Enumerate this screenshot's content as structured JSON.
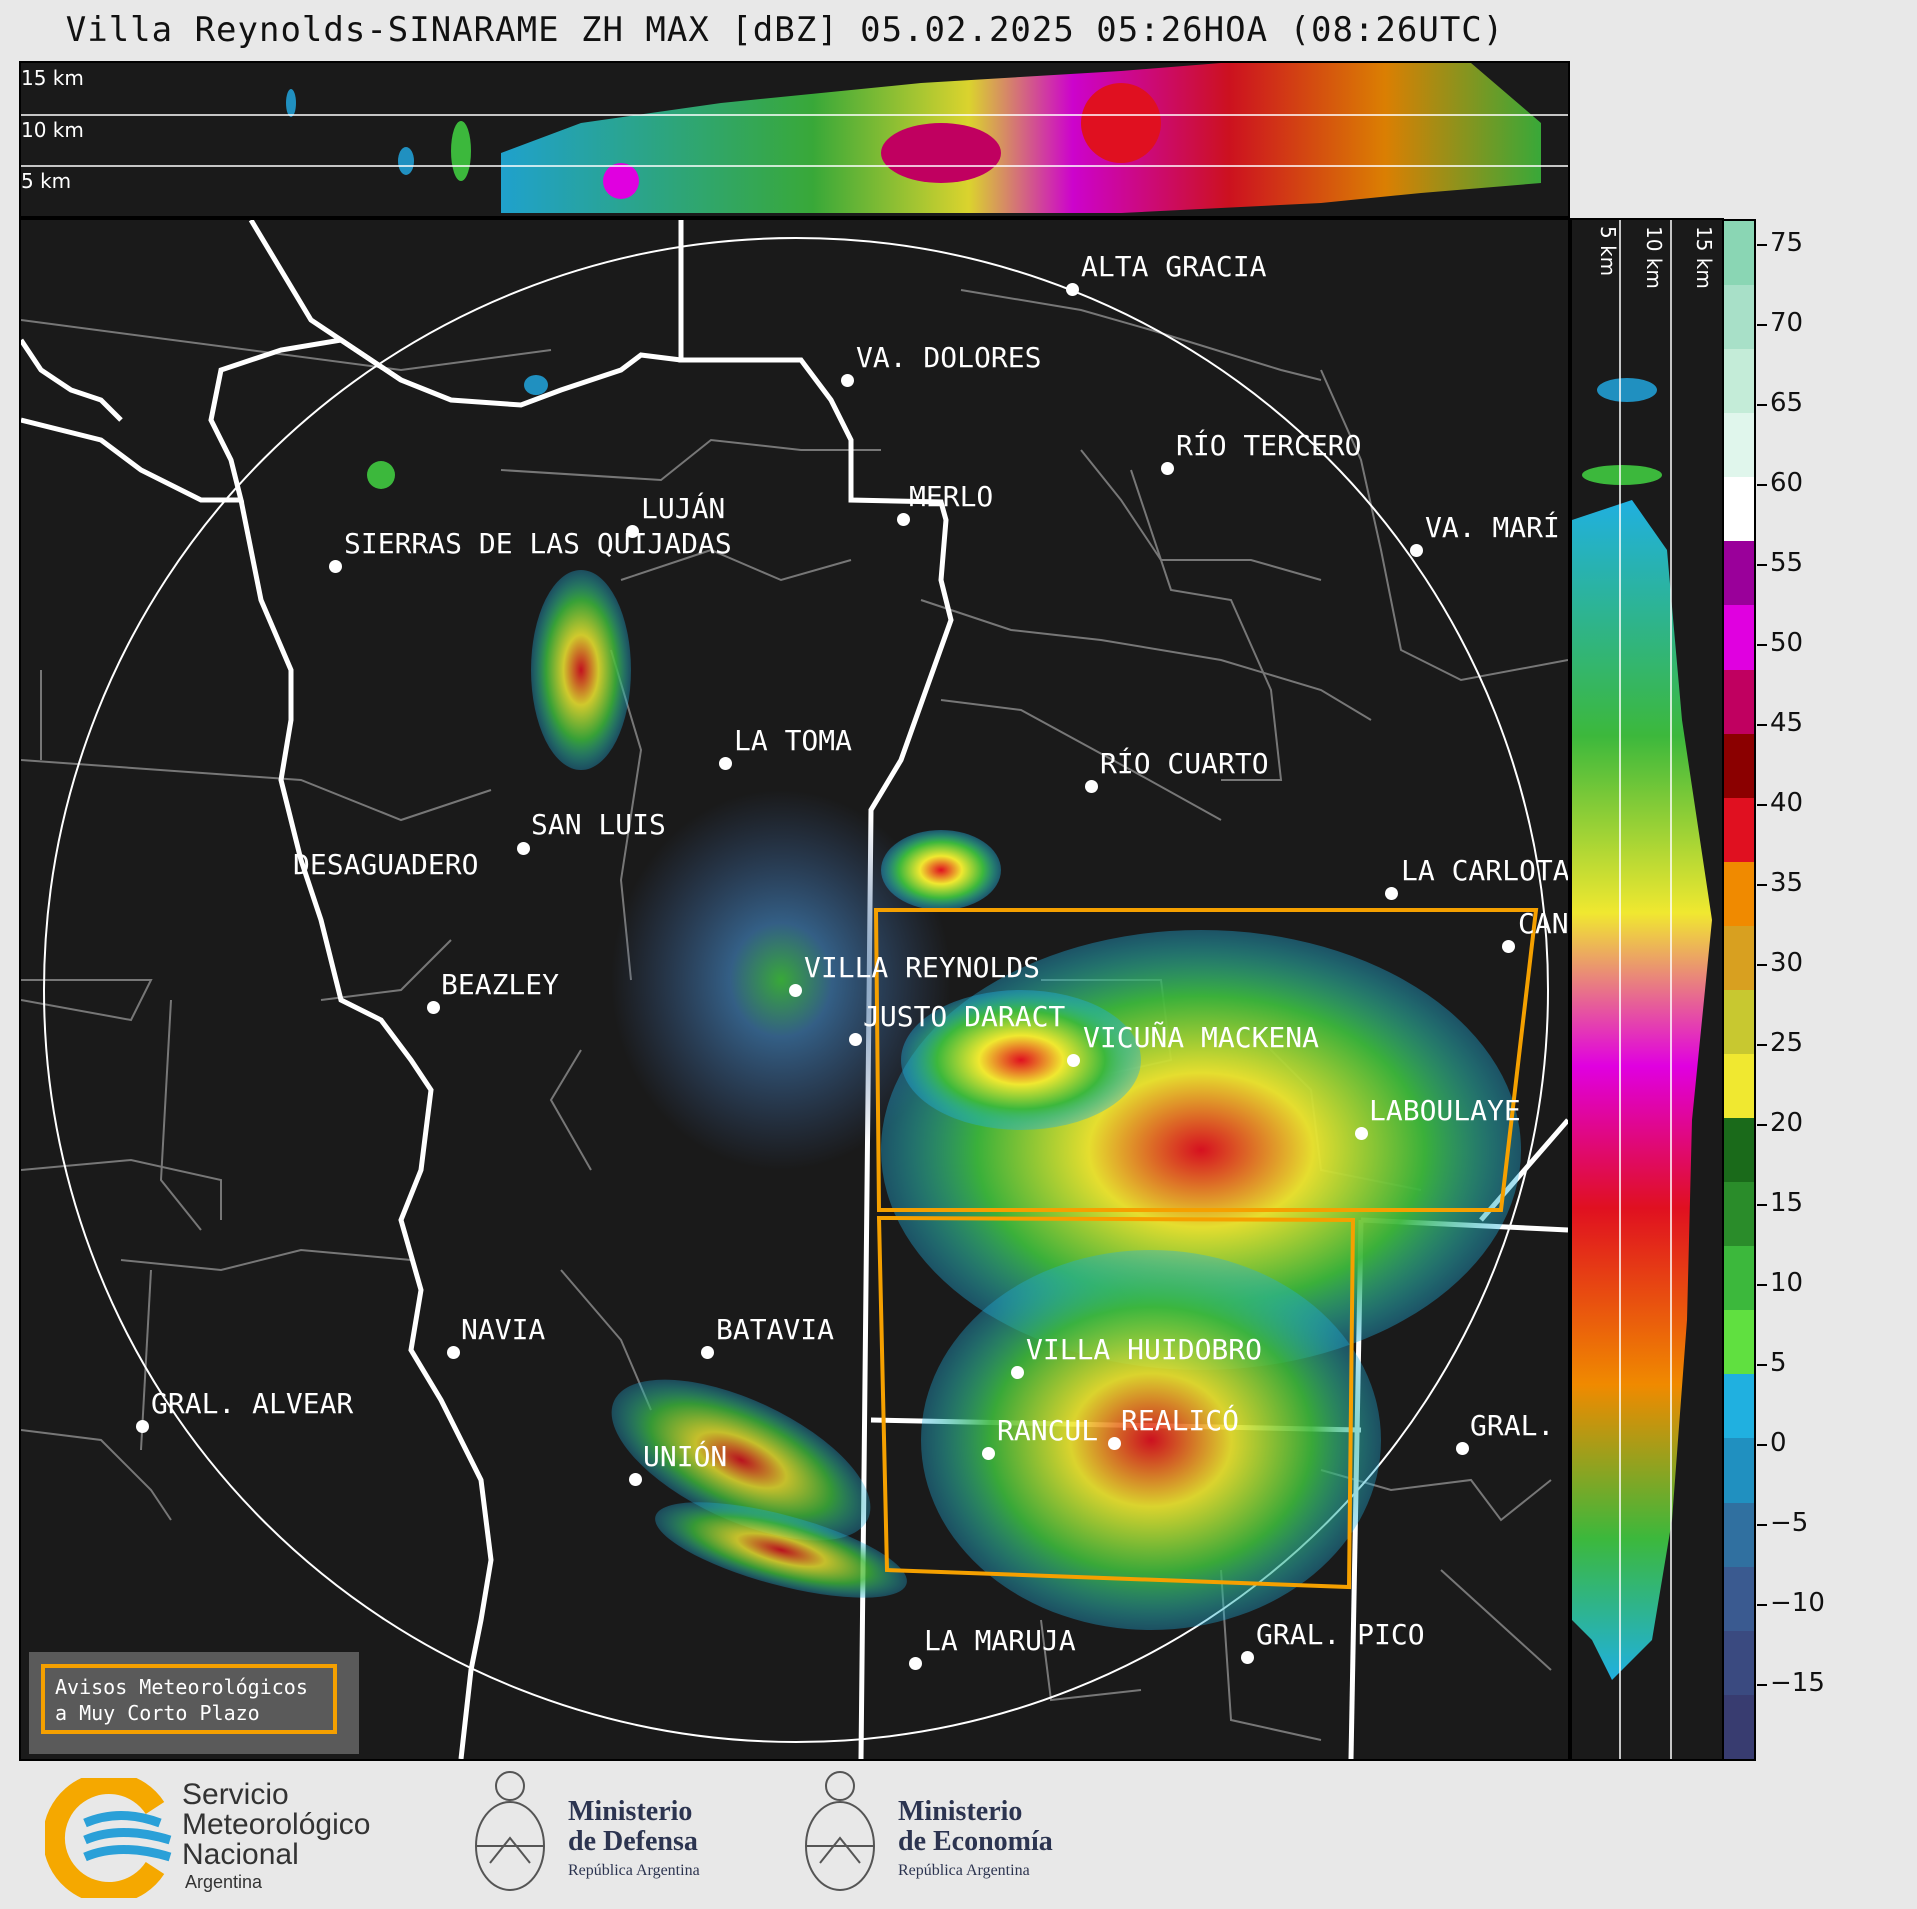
{
  "title": "Villa Reynolds-SINARAME ZH MAX [dBZ] 05.02.2025 05:26HOA (08:26UTC)",
  "top_panel": {
    "labels": [
      "15 km",
      "10 km",
      "5 km"
    ]
  },
  "side_panel": {
    "labels": [
      "5 km",
      "10 km",
      "15 km"
    ]
  },
  "cities": [
    {
      "name": "ALTA GRACIA",
      "id": "alta-gracia"
    },
    {
      "name": "VA. DOLORES",
      "id": "va-dolores"
    },
    {
      "name": "RÍO TERCERO",
      "id": "rio-tercero"
    },
    {
      "name": "MERLO",
      "id": "merlo"
    },
    {
      "name": "LUJÁN",
      "id": "lujan"
    },
    {
      "name": "SIERRAS DE LAS QUIJADAS",
      "id": "sierras"
    },
    {
      "name": "VA. MARÍ",
      "id": "va-maria"
    },
    {
      "name": "LA TOMA",
      "id": "la-toma"
    },
    {
      "name": "RÍO CUARTO",
      "id": "rio-cuarto"
    },
    {
      "name": "SAN LUIS",
      "id": "san-luis"
    },
    {
      "name": "DESAGUADERO",
      "id": "desaguadero"
    },
    {
      "name": "LA CARLOTA",
      "id": "la-carlota"
    },
    {
      "name": "CAN",
      "id": "can"
    },
    {
      "name": "VILLA REYNOLDS",
      "id": "villa-reynolds"
    },
    {
      "name": "BEAZLEY",
      "id": "beazley"
    },
    {
      "name": "JUSTO DARACT",
      "id": "justo-daract"
    },
    {
      "name": "VICUÑA MACKENA",
      "id": "vicuna-mackena"
    },
    {
      "name": "LABOULAYE",
      "id": "laboulaye"
    },
    {
      "name": "NAVIA",
      "id": "navia"
    },
    {
      "name": "BATAVIA",
      "id": "batavia"
    },
    {
      "name": "VILLA HUIDOBRO",
      "id": "villa-huidobro"
    },
    {
      "name": "GRAL. ALVEAR",
      "id": "gral-alvear"
    },
    {
      "name": "RANCUL",
      "id": "rancul"
    },
    {
      "name": "REALICÓ",
      "id": "realico"
    },
    {
      "name": "GRAL.",
      "id": "gral"
    },
    {
      "name": "UNIÓN",
      "id": "union"
    },
    {
      "name": "LA MARUJA",
      "id": "la-maruja"
    },
    {
      "name": "GRAL. PICO",
      "id": "gral-pico"
    }
  ],
  "legend_box": {
    "line1": "Avisos Meteorológicos",
    "line2": "a Muy Corto Plazo"
  },
  "colorbar": {
    "unit": "dBZ",
    "ticks": [
      "75",
      "70",
      "65",
      "60",
      "55",
      "50",
      "45",
      "40",
      "35",
      "30",
      "25",
      "20",
      "15",
      "10",
      "5",
      "0",
      "−5",
      "−10",
      "−15"
    ],
    "colors": [
      "#8ad6b4",
      "#a8e0c8",
      "#c4ecd8",
      "#e0f6ec",
      "#ffffff",
      "#9a009a",
      "#e000e0",
      "#c00060",
      "#8b0000",
      "#e01020",
      "#f08a00",
      "#d8a020",
      "#c8c830",
      "#f0e830",
      "#1a6a1a",
      "#2a8c2a",
      "#3cb83c",
      "#60e040",
      "#20b0e0",
      "#2090c0",
      "#3070a0",
      "#3a5a90",
      "#3a4a80",
      "#383c70"
    ]
  },
  "footer": {
    "smn": {
      "line1": "Servicio",
      "line2": "Meteorológico",
      "line3": "Nacional",
      "line4": "Argentina"
    },
    "defensa": {
      "line1": "Ministerio",
      "line2": "de Defensa",
      "line3": "República Argentina"
    },
    "economia": {
      "line1": "Ministerio",
      "line2": "de Economía",
      "line3": "República Argentina"
    }
  }
}
